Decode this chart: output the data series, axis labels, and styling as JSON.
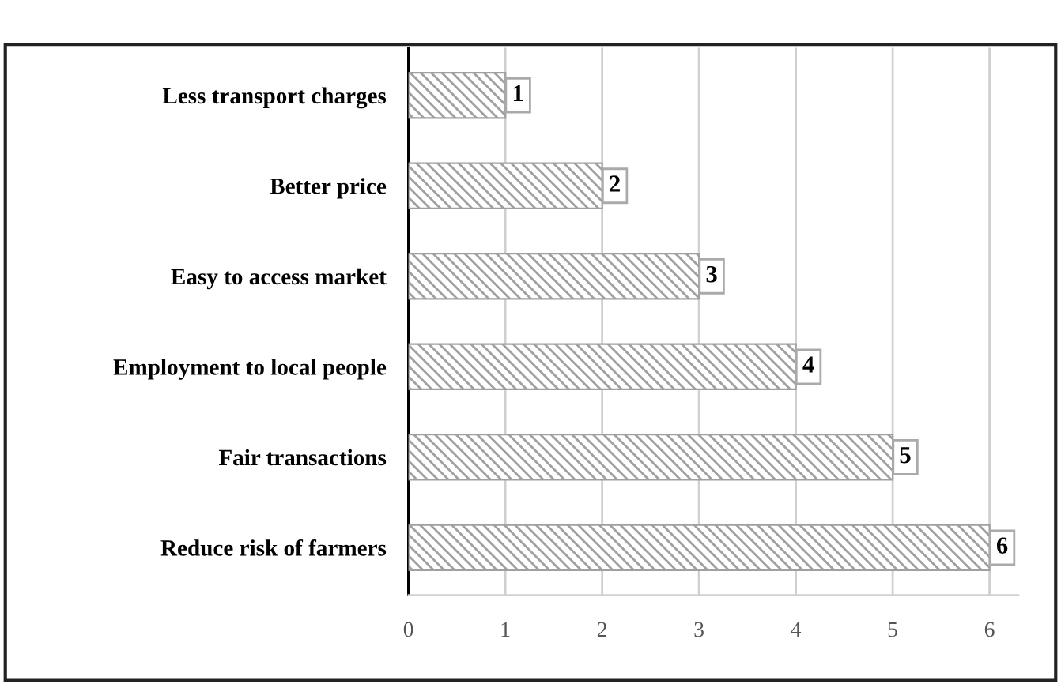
{
  "chart_data": {
    "type": "bar",
    "orientation": "horizontal",
    "categories": [
      "Less transport charges",
      "Better price",
      "Easy to access market",
      "Employment to local people",
      "Fair transactions",
      "Reduce risk of farmers"
    ],
    "values": [
      1,
      2,
      3,
      4,
      5,
      6
    ],
    "color": "#a0a0a0",
    "xlim": [
      0,
      6.3
    ],
    "xticks": [
      0,
      1,
      2,
      3,
      4,
      5,
      6
    ],
    "grid": "x",
    "data_labels": true
  }
}
